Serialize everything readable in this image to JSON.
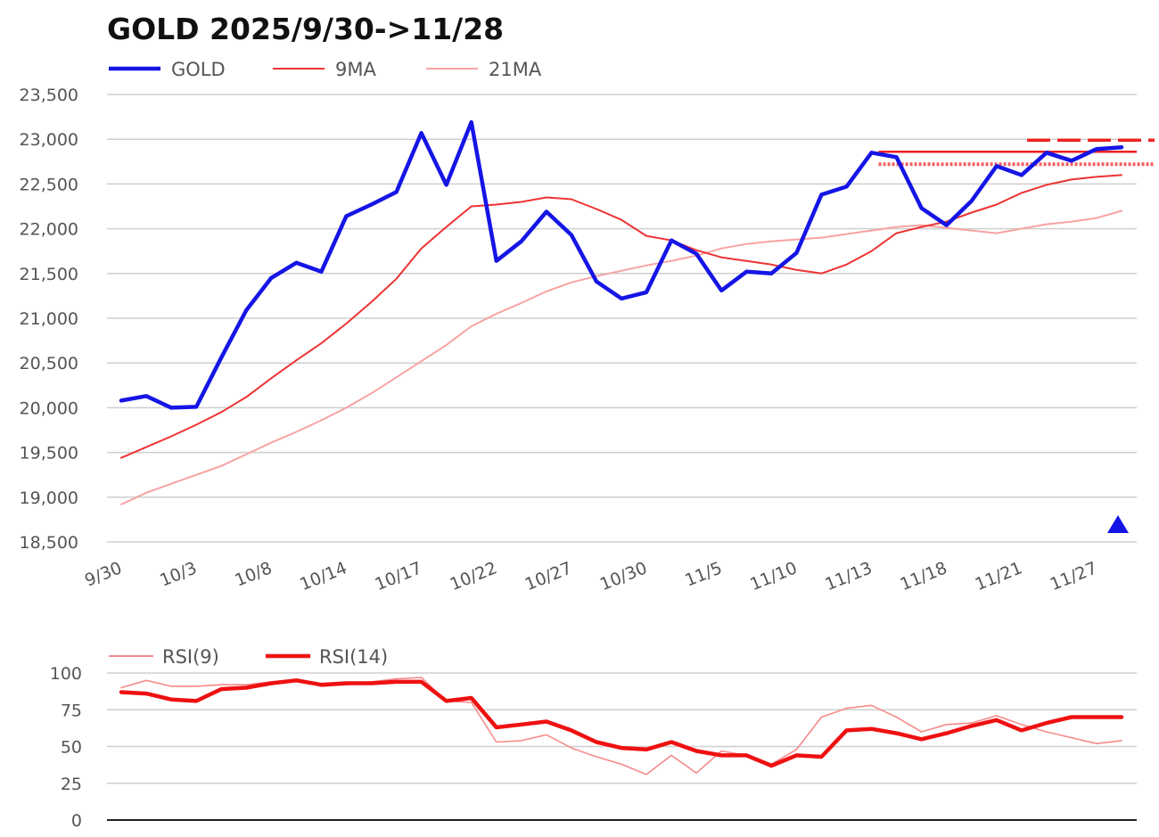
{
  "chart_data": [
    {
      "type": "line",
      "title": "GOLD 2025/9/30->11/28",
      "ylim": [
        18500,
        23500
      ],
      "yticks": [
        "18,500",
        "19,000",
        "19,500",
        "20,000",
        "20,500",
        "21,000",
        "21,500",
        "22,000",
        "22,500",
        "23,000",
        "23,500"
      ],
      "ytick_values": [
        18500,
        19000,
        19500,
        20000,
        20500,
        21000,
        21500,
        22000,
        22500,
        23000,
        23500
      ],
      "xtick_labels": [
        "9/30",
        "10/3",
        "10/8",
        "10/14",
        "10/17",
        "10/22",
        "10/27",
        "10/30",
        "11/5",
        "11/10",
        "11/13",
        "11/18",
        "11/21",
        "11/27"
      ],
      "xtick_indices": [
        0,
        3,
        6,
        9,
        12,
        15,
        18,
        21,
        24,
        27,
        30,
        33,
        36,
        39
      ],
      "series": [
        {
          "name": "GOLD",
          "color": "#1515e6",
          "values": [
            20080,
            20130,
            20000,
            20010,
            20560,
            21090,
            21450,
            21620,
            21520,
            22140,
            22270,
            22410,
            23070,
            22490,
            23190,
            21640,
            21860,
            22190,
            21930,
            21410,
            21220,
            21290,
            21870,
            21720,
            21310,
            21520,
            21500,
            21730,
            22380,
            22470,
            22850,
            22800,
            22230,
            22040,
            22310,
            22700,
            22600,
            22850,
            22760,
            22890,
            22910
          ]
        },
        {
          "name": "9MA",
          "color": "#ee3333",
          "values": [
            19440,
            19560,
            19680,
            19810,
            19950,
            20120,
            20330,
            20530,
            20720,
            20940,
            21180,
            21440,
            21780,
            22020,
            22250,
            22270,
            22300,
            22350,
            22330,
            22220,
            22100,
            21920,
            21870,
            21760,
            21680,
            21640,
            21600,
            21540,
            21500,
            21600,
            21750,
            21950,
            22020,
            22080,
            22180,
            22270,
            22400,
            22490,
            22550,
            22580,
            22600
          ]
        },
        {
          "name": "21MA",
          "color": "#f7a3a3",
          "values": [
            18920,
            19050,
            19150,
            19250,
            19350,
            19480,
            19610,
            19730,
            19860,
            20000,
            20160,
            20340,
            20520,
            20700,
            20910,
            21050,
            21170,
            21300,
            21400,
            21470,
            21530,
            21590,
            21640,
            21700,
            21780,
            21830,
            21860,
            21880,
            21900,
            21940,
            21980,
            22020,
            22040,
            22010,
            21980,
            21950,
            22000,
            22050,
            22080,
            22120,
            22200
          ]
        }
      ],
      "annotations": {
        "resistance_lines": [
          22860,
          22990,
          22720
        ],
        "marker": "up-triangle"
      }
    },
    {
      "type": "line",
      "title": "",
      "ylim": [
        0,
        100
      ],
      "yticks": [
        "0",
        "25",
        "50",
        "75",
        "100"
      ],
      "ytick_values": [
        0,
        25,
        50,
        75,
        100
      ],
      "series": [
        {
          "name": "RSI(9)",
          "color": "#f48b8b",
          "values": [
            90,
            95,
            91,
            91,
            92,
            92,
            94,
            95,
            91,
            92,
            94,
            96,
            97,
            81,
            80,
            53,
            54,
            58,
            49,
            43,
            38,
            31,
            44,
            32,
            47,
            44,
            38,
            48,
            70,
            76,
            78,
            70,
            60,
            65,
            66,
            71,
            65,
            60,
            56,
            52,
            54
          ]
        },
        {
          "name": "RSI(14)",
          "color": "#ee1111",
          "values": [
            87,
            86,
            82,
            81,
            89,
            90,
            93,
            95,
            92,
            93,
            93,
            94,
            94,
            81,
            83,
            63,
            65,
            67,
            61,
            53,
            49,
            48,
            53,
            47,
            44,
            44,
            37,
            44,
            43,
            61,
            62,
            59,
            55,
            59,
            64,
            68,
            61,
            66,
            70,
            70,
            70
          ]
        }
      ]
    }
  ]
}
